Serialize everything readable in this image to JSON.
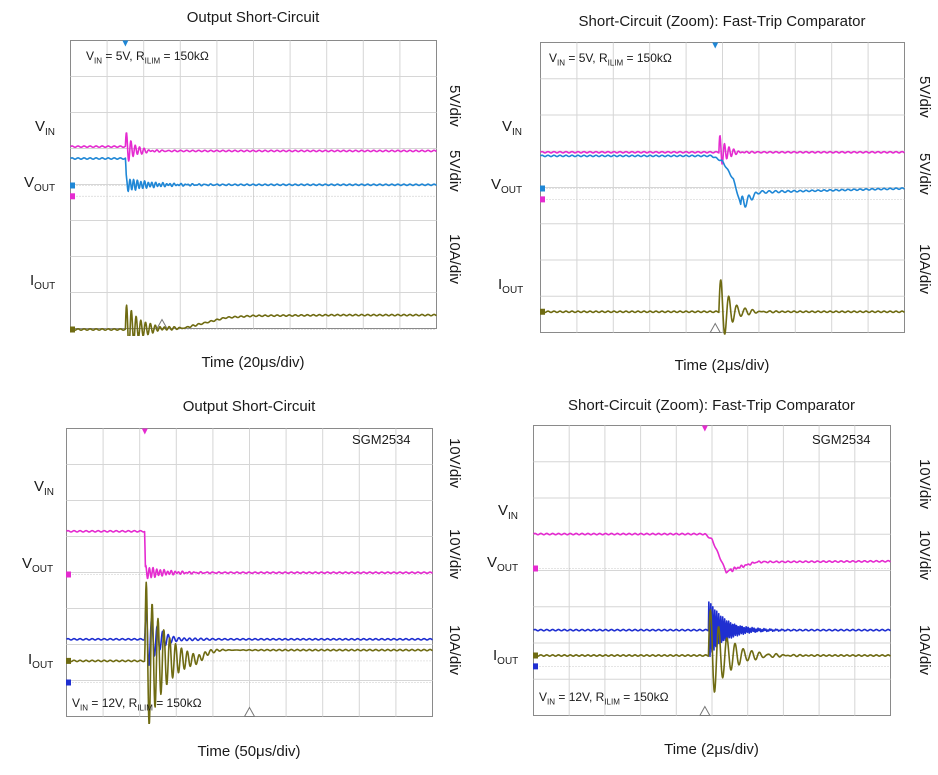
{
  "chart_data": [
    {
      "type": "line",
      "title": "Output Short-Circuit",
      "xlabel": "Time (20μs/div)",
      "condition": {
        "vin": "5V",
        "rilim": "150kΩ"
      },
      "model": "",
      "grid": true,
      "x_divisions": 10,
      "x_unit": "μs",
      "x_per_div": 20,
      "x_range": [
        0,
        200
      ],
      "event_time": 30,
      "trigger_time": 50,
      "series": [
        {
          "name": "VIN",
          "color": "#e52bd0",
          "scale": "5V/div",
          "level_div": -0.3,
          "points": [
            [
              0,
              1.38
            ],
            [
              29,
              1.38
            ],
            [
              30,
              1.38
            ],
            [
              32,
              1.3
            ],
            [
              40,
              1.26
            ],
            [
              200,
              1.26
            ]
          ],
          "ringing": {
            "start": 30,
            "amp_div": 0.45,
            "period": 1.2,
            "decay": 4
          }
        },
        {
          "name": "VOUT",
          "color": "#1f87d6",
          "scale": "5V/div",
          "level_div": 0,
          "points": [
            [
              0,
              0.75
            ],
            [
              30,
              0.75
            ],
            [
              30.5,
              0.02
            ],
            [
              200,
              0.02
            ]
          ],
          "ringing": {
            "start": 30,
            "amp_div": 0.2,
            "period": 1,
            "decay": 1.5
          }
        },
        {
          "name": "IOUT",
          "color": "#6f6b12",
          "scale": "10A/div",
          "level_div": -4,
          "points": [
            [
              0,
              0
            ],
            [
              30,
              0
            ],
            [
              33,
              0.06
            ],
            [
              40,
              0.02
            ],
            [
              62,
              0.04
            ],
            [
              85,
              0.33
            ],
            [
              100,
              0.38
            ],
            [
              145,
              0.4
            ],
            [
              200,
              0.4
            ]
          ],
          "ringing": {
            "start": 30,
            "amp_div": 0.7,
            "period": 1.3,
            "decay": 2.5
          }
        }
      ]
    },
    {
      "type": "line",
      "title": "Short-Circuit (Zoom): Fast-Trip Comparator",
      "xlabel": "Time (2μs/div)",
      "condition": {
        "vin": "5V",
        "rilim": "150kΩ"
      },
      "model": "",
      "grid": true,
      "x_divisions": 10,
      "x_unit": "μs",
      "x_per_div": 2,
      "x_range": [
        0,
        20
      ],
      "event_time": 9.6,
      "trigger_time": 9.6,
      "series": [
        {
          "name": "VIN",
          "color": "#e52bd0",
          "scale": "5V/div",
          "level_div": -0.3,
          "points": [
            [
              0,
              1.3
            ],
            [
              9.6,
              1.3
            ],
            [
              20,
              1.3
            ]
          ],
          "ringing": {
            "start": 9.8,
            "amp_div": 0.55,
            "period": 1.25,
            "decay": 5
          }
        },
        {
          "name": "VOUT",
          "color": "#1f87d6",
          "scale": "5V/div",
          "level_div": 0,
          "points": [
            [
              0,
              0.9
            ],
            [
              9.4,
              0.9
            ],
            [
              10,
              0.75
            ],
            [
              10.6,
              0.25
            ],
            [
              11,
              -0.45
            ],
            [
              12,
              -0.1
            ],
            [
              20,
              0.0
            ]
          ],
          "ringing": {
            "start": 11,
            "amp_div": 0.25,
            "period": 1.8,
            "decay": 3
          }
        },
        {
          "name": "IOUT",
          "color": "#6f6b12",
          "scale": "10A/div",
          "level_div": -3.4,
          "points": [
            [
              0,
              0
            ],
            [
              9.6,
              0
            ],
            [
              20,
              0
            ]
          ],
          "ringing": {
            "start": 9.8,
            "amp_div": 1.05,
            "period": 2.2,
            "decay": 3.4
          }
        }
      ]
    },
    {
      "type": "line",
      "title": "Output Short-Circuit",
      "xlabel": "Time (50μs/div)",
      "condition": {
        "vin": "12V",
        "rilim": "150kΩ"
      },
      "model": "SGM2534",
      "grid": true,
      "x_divisions": 10,
      "x_unit": "μs",
      "x_per_div": 50,
      "x_range": [
        0,
        500
      ],
      "event_time": 107,
      "trigger_time": 250,
      "series": [
        {
          "name": "VIN",
          "color": "#1f2fd1",
          "scale": "10V/div",
          "level_div": -3,
          "points": [
            [
              0,
              1.2
            ],
            [
              107,
              1.2
            ],
            [
              500,
              1.2
            ]
          ],
          "ringing": {
            "start": 107,
            "amp_div": 1.0,
            "period": 1.5,
            "decay": 3
          }
        },
        {
          "name": "VOUT",
          "color": "#e52bd0",
          "scale": "10V/div",
          "level_div": 0,
          "points": [
            [
              0,
              1.2
            ],
            [
              107,
              1.2
            ],
            [
              107.5,
              0.05
            ],
            [
              500,
              0.05
            ]
          ],
          "ringing": {
            "start": 107,
            "amp_div": 0.2,
            "period": 1,
            "decay": 2
          }
        },
        {
          "name": "IOUT",
          "color": "#6f6b12",
          "scale": "10A/div",
          "level_div": -2.4,
          "points": [
            [
              0,
              0
            ],
            [
              107,
              0
            ],
            [
              108,
              0.04
            ],
            [
              180,
              0.04
            ],
            [
              195,
              0.25
            ],
            [
              210,
              0.3
            ],
            [
              500,
              0.3
            ]
          ],
          "ringing": {
            "start": 107,
            "amp_div": 2.3,
            "period": 1.6,
            "decay": 2
          }
        }
      ]
    },
    {
      "type": "line",
      "title": "Short-Circuit (Zoom): Fast-Trip Comparator",
      "xlabel": "Time (2μs/div)",
      "condition": {
        "vin": "12V",
        "rilim": "150kΩ"
      },
      "model": "SGM2534",
      "grid": true,
      "x_divisions": 10,
      "x_unit": "μs",
      "x_per_div": 2,
      "x_range": [
        0,
        20
      ],
      "event_time": 9.6,
      "trigger_time": 9.6,
      "series": [
        {
          "name": "VIN",
          "color": "#1f2fd1",
          "scale": "10V/div",
          "level_div": -2.7,
          "points": [
            [
              0,
              1.0
            ],
            [
              9.6,
              1.0
            ],
            [
              20,
              1.0
            ]
          ],
          "ringing": {
            "start": 9.8,
            "amp_div": 0.85,
            "period": 0.55,
            "decay": 2.2
          }
        },
        {
          "name": "VOUT",
          "color": "#e52bd0",
          "scale": "10V/div",
          "level_div": 0,
          "points": [
            [
              0,
              0.95
            ],
            [
              9.6,
              0.95
            ],
            [
              10.0,
              0.8
            ],
            [
              10.8,
              -0.1
            ],
            [
              11.3,
              0.0
            ],
            [
              12.5,
              0.18
            ],
            [
              20,
              0.2
            ]
          ],
          "ringing": {
            "start": 11,
            "amp_div": 0.04,
            "period": 1,
            "decay": 2
          }
        },
        {
          "name": "IOUT",
          "color": "#6f6b12",
          "scale": "10A/div",
          "level_div": -2.4,
          "points": [
            [
              0,
              0
            ],
            [
              9.6,
              0
            ],
            [
              20,
              0
            ]
          ],
          "ringing": {
            "start": 9.8,
            "amp_div": 1.4,
            "period": 2.3,
            "decay": 2.0
          }
        }
      ]
    }
  ]
}
